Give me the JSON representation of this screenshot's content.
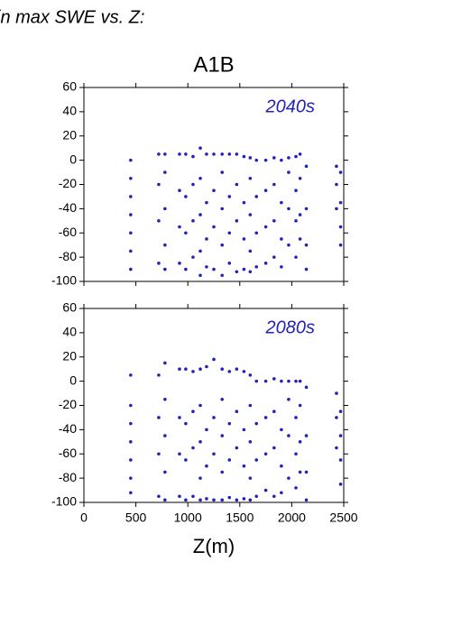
{
  "header": "in max SWE vs. Z:",
  "chart_data": [
    {
      "type": "scatter",
      "title": "A1B",
      "annotation": "2040s",
      "color": "#2222bb",
      "xlim": [
        0,
        2500
      ],
      "xticks": [
        0,
        500,
        1000,
        1500,
        2000,
        2500
      ],
      "ylim": [
        -100,
        60
      ],
      "yticks": [
        -100,
        -80,
        -60,
        -40,
        -20,
        0,
        20,
        40,
        60
      ],
      "x": [
        450,
        450,
        450,
        450,
        450,
        450,
        450,
        720,
        720,
        720,
        720,
        780,
        780,
        780,
        780,
        780,
        920,
        920,
        920,
        920,
        980,
        980,
        980,
        980,
        1050,
        1050,
        1050,
        1050,
        1120,
        1120,
        1120,
        1120,
        1120,
        1180,
        1180,
        1180,
        1180,
        1250,
        1250,
        1250,
        1250,
        1330,
        1330,
        1330,
        1330,
        1330,
        1400,
        1400,
        1400,
        1400,
        1470,
        1470,
        1470,
        1470,
        1540,
        1540,
        1540,
        1540,
        1600,
        1600,
        1600,
        1600,
        1600,
        1660,
        1660,
        1660,
        1660,
        1750,
        1750,
        1750,
        1750,
        1830,
        1830,
        1830,
        1830,
        1900,
        1900,
        1900,
        1900,
        1970,
        1970,
        1970,
        1970,
        2040,
        2040,
        2040,
        2040,
        2080,
        2080,
        2080,
        2080,
        2140,
        2140,
        2140,
        2140,
        2430,
        2430,
        2430,
        2470,
        2470,
        2470,
        2470
      ],
      "values": [
        0,
        -15,
        -30,
        -45,
        -60,
        -75,
        -90,
        5,
        -20,
        -50,
        -85,
        5,
        -10,
        -40,
        -70,
        -90,
        5,
        -25,
        -55,
        -85,
        5,
        -30,
        -60,
        -90,
        3,
        -20,
        -50,
        -80,
        10,
        -15,
        -45,
        -75,
        -95,
        5,
        -35,
        -65,
        -88,
        5,
        -25,
        -55,
        -90,
        5,
        -10,
        -40,
        -70,
        -95,
        5,
        -30,
        -60,
        -85,
        5,
        -20,
        -50,
        -92,
        3,
        -35,
        -65,
        -90,
        2,
        -15,
        -45,
        -75,
        -92,
        0,
        -30,
        -60,
        -88,
        0,
        -25,
        -55,
        -85,
        2,
        -20,
        -50,
        -80,
        0,
        -35,
        -65,
        -88,
        2,
        -10,
        -40,
        -70,
        3,
        -25,
        -50,
        -80,
        5,
        -15,
        -45,
        -65,
        -5,
        -40,
        -70,
        -90,
        -5,
        -20,
        -40,
        -10,
        -35,
        -55,
        -70
      ]
    },
    {
      "type": "scatter",
      "annotation": "2080s",
      "xlabel": "Z(m)",
      "color": "#2222bb",
      "xlim": [
        0,
        2500
      ],
      "xticks": [
        0,
        500,
        1000,
        1500,
        2000,
        2500
      ],
      "ylim": [
        -100,
        60
      ],
      "yticks": [
        -100,
        -80,
        -60,
        -40,
        -20,
        0,
        20,
        40,
        60
      ],
      "x": [
        450,
        450,
        450,
        450,
        450,
        450,
        450,
        720,
        720,
        720,
        720,
        780,
        780,
        780,
        780,
        780,
        920,
        920,
        920,
        920,
        980,
        980,
        980,
        980,
        1050,
        1050,
        1050,
        1050,
        1120,
        1120,
        1120,
        1120,
        1120,
        1180,
        1180,
        1180,
        1180,
        1250,
        1250,
        1250,
        1250,
        1330,
        1330,
        1330,
        1330,
        1330,
        1400,
        1400,
        1400,
        1400,
        1470,
        1470,
        1470,
        1470,
        1540,
        1540,
        1540,
        1540,
        1600,
        1600,
        1600,
        1600,
        1600,
        1660,
        1660,
        1660,
        1660,
        1750,
        1750,
        1750,
        1750,
        1830,
        1830,
        1830,
        1830,
        1900,
        1900,
        1900,
        1900,
        1970,
        1970,
        1970,
        1970,
        2040,
        2040,
        2040,
        2040,
        2080,
        2080,
        2080,
        2080,
        2140,
        2140,
        2140,
        2140,
        2430,
        2430,
        2430,
        2470,
        2470,
        2470,
        2470
      ],
      "values": [
        5,
        -20,
        -35,
        -50,
        -65,
        -80,
        -92,
        5,
        -30,
        -60,
        -95,
        15,
        -15,
        -45,
        -75,
        -98,
        10,
        -30,
        -60,
        -95,
        10,
        -35,
        -65,
        -98,
        8,
        -25,
        -55,
        -95,
        10,
        -20,
        -50,
        -80,
        -98,
        12,
        -40,
        -70,
        -97,
        18,
        -30,
        -60,
        -98,
        10,
        -15,
        -45,
        -75,
        -98,
        8,
        -35,
        -65,
        -96,
        10,
        -25,
        -55,
        -98,
        8,
        -40,
        -70,
        -97,
        5,
        -20,
        -50,
        -80,
        -98,
        0,
        -35,
        -65,
        -95,
        0,
        -30,
        -60,
        -90,
        2,
        -25,
        -55,
        -95,
        0,
        -40,
        -70,
        -92,
        0,
        -15,
        -45,
        -80,
        0,
        -30,
        -60,
        -88,
        0,
        -20,
        -50,
        -75,
        -5,
        -45,
        -75,
        -98,
        -10,
        -30,
        -55,
        -25,
        -45,
        -65,
        -85
      ]
    }
  ]
}
